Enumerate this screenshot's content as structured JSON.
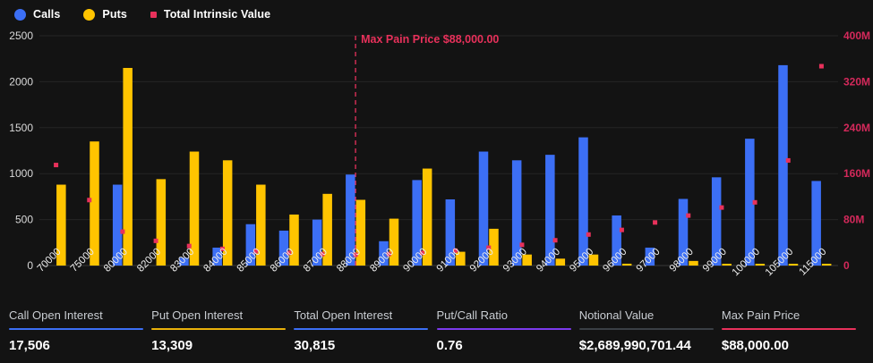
{
  "legend": {
    "items": [
      {
        "label": "Calls",
        "marker": "circle",
        "color": "#3C6FF5"
      },
      {
        "label": "Puts",
        "marker": "circle",
        "color": "#FFC400"
      },
      {
        "label": "Total Intrinsic Value",
        "marker": "square",
        "color": "#E8315B"
      }
    ]
  },
  "chart_data": {
    "type": "bar",
    "title": "",
    "categories": [
      "70000",
      "75000",
      "80000",
      "82000",
      "83000",
      "84000",
      "85000",
      "86000",
      "87000",
      "88000",
      "89000",
      "90000",
      "91000",
      "92000",
      "93000",
      "94000",
      "95000",
      "96000",
      "97000",
      "98000",
      "99000",
      "100000",
      "105000",
      "115000"
    ],
    "series": [
      {
        "name": "Calls",
        "type": "bar",
        "axis": "left",
        "color": "#3C6FF5",
        "values": [
          0,
          0,
          880,
          0,
          85,
          195,
          450,
          380,
          500,
          990,
          265,
          930,
          720,
          1240,
          1145,
          1205,
          1395,
          545,
          195,
          725,
          960,
          1380,
          2180,
          920
        ]
      },
      {
        "name": "Puts",
        "type": "bar",
        "axis": "left",
        "color": "#FFC400",
        "values": [
          880,
          1350,
          2150,
          940,
          1240,
          1145,
          880,
          555,
          780,
          715,
          510,
          1055,
          150,
          400,
          120,
          75,
          120,
          20,
          0,
          50,
          5,
          10,
          15,
          5
        ]
      },
      {
        "name": "Total Intrinsic Value",
        "type": "scatter",
        "axis": "right",
        "color": "#E8315B",
        "values_millions": [
          175,
          114,
          59,
          43,
          34,
          29,
          25,
          22,
          20,
          19,
          20,
          22,
          26,
          31,
          36,
          44,
          54,
          62,
          75,
          87,
          101,
          110,
          183,
          347
        ]
      }
    ],
    "left_axis": {
      "ticks": [
        0,
        500,
        1000,
        1500,
        2000,
        2500
      ],
      "max": 2500,
      "label_color": "#D9D9D9"
    },
    "right_axis": {
      "ticks": [
        "0",
        "80M",
        "160M",
        "240M",
        "320M",
        "400M"
      ],
      "max_millions": 400,
      "label_color": "#D4295B"
    },
    "annotation": {
      "label": "Max Pain Price $88,000.00",
      "strike": "88000",
      "color": "#E8315B"
    },
    "grid": true,
    "grid_color": "#242424",
    "axisline_color": "#3a3a3a",
    "xlabel_color": "#ececec",
    "legend_position": "top-left",
    "ylim": [
      0,
      2500
    ],
    "ylim_right_millions": [
      0,
      400
    ]
  },
  "stats": {
    "items": [
      {
        "label": "Call Open Interest",
        "value": "17,506",
        "color": "#3C6FF5"
      },
      {
        "label": "Put Open Interest",
        "value": "13,309",
        "color": "#E9B10A"
      },
      {
        "label": "Total Open Interest",
        "value": "30,815",
        "color": "#3C6FF5"
      },
      {
        "label": "Put/Call Ratio",
        "value": "0.76",
        "color": "#7C3AED"
      },
      {
        "label": "Notional Value",
        "value": "$2,689,990,701.44",
        "color": "#3A3F45"
      },
      {
        "label": "Max Pain Price",
        "value": "$88,000.00",
        "color": "#E8315B"
      }
    ]
  }
}
